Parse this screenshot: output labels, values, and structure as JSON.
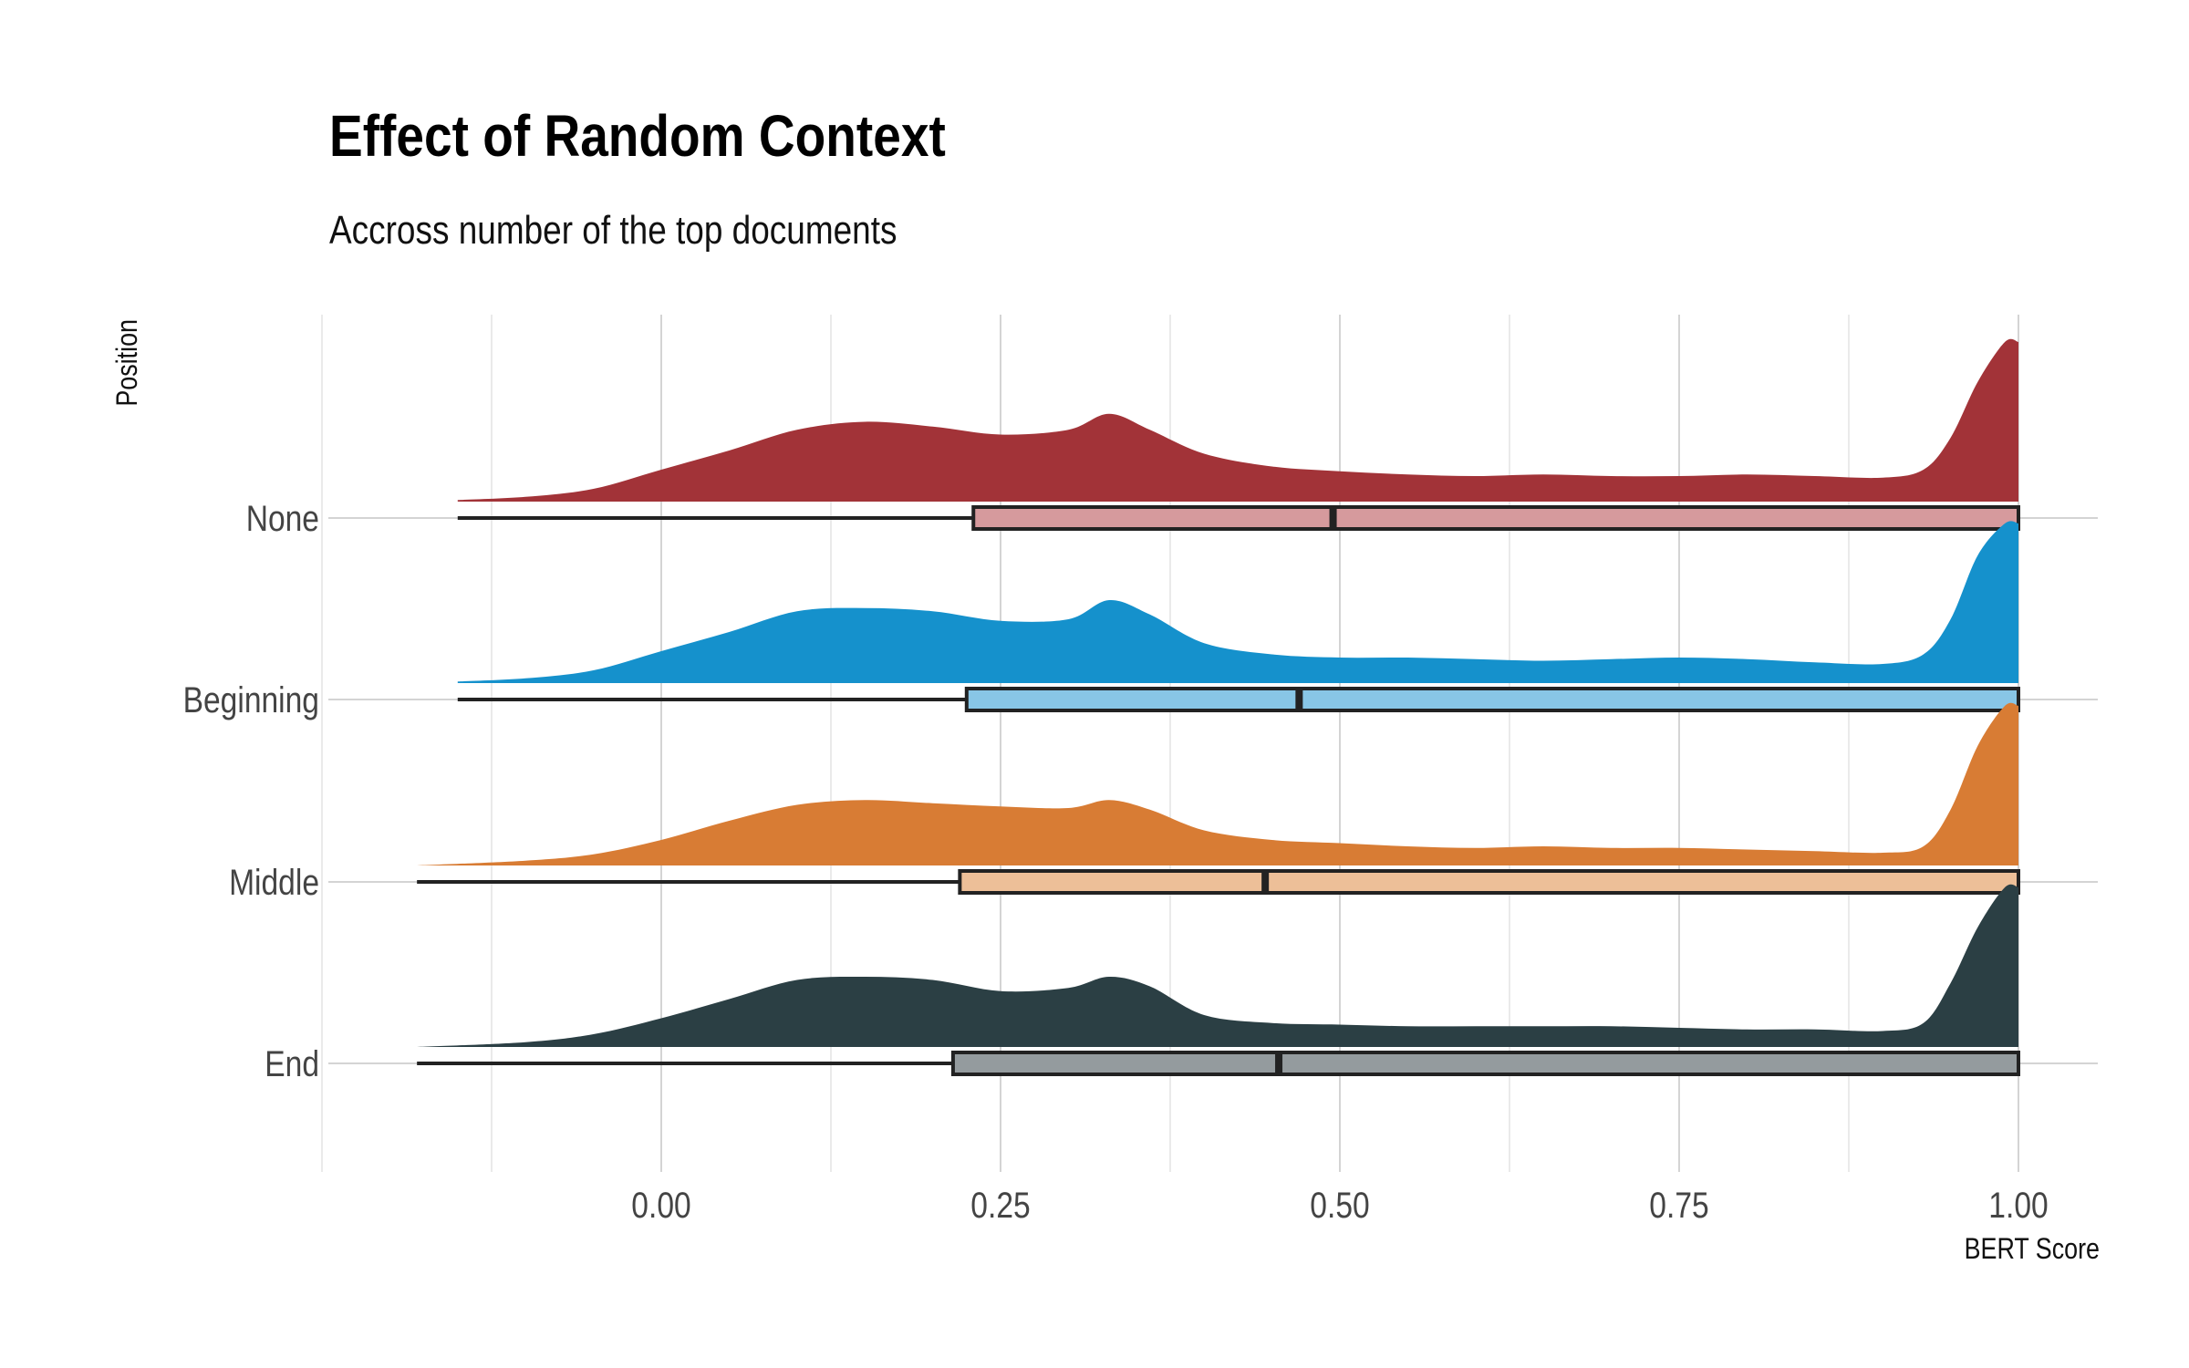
{
  "chart_data": {
    "type": "raincloud",
    "title": "Effect of Random Context",
    "subtitle": "Accross number of the top documents",
    "xlabel": "BERT Score",
    "ylabel": "Position",
    "xlim": [
      -0.25,
      1.06
    ],
    "x_ticks": [
      0.0,
      0.25,
      0.5,
      0.75,
      1.0
    ],
    "x_tick_labels": [
      "0.00",
      "0.25",
      "0.50",
      "0.75",
      "1.00"
    ],
    "grid": true,
    "categories": [
      "None",
      "Beginning",
      "Middle",
      "End"
    ],
    "series": [
      {
        "name": "None",
        "color": "#A23338",
        "box_fill": "#D69A9D",
        "box": {
          "whisker_low": -0.15,
          "q1": 0.23,
          "median": 0.495,
          "q3": 1.0,
          "whisker_high": 1.0
        },
        "density_x": [
          -0.15,
          -0.1,
          -0.05,
          0.0,
          0.05,
          0.1,
          0.15,
          0.2,
          0.25,
          0.3,
          0.33,
          0.36,
          0.4,
          0.45,
          0.5,
          0.55,
          0.6,
          0.65,
          0.7,
          0.75,
          0.8,
          0.85,
          0.9,
          0.93,
          0.95,
          0.97,
          0.99,
          1.0
        ],
        "density_y": [
          0.01,
          0.03,
          0.08,
          0.2,
          0.32,
          0.45,
          0.5,
          0.47,
          0.42,
          0.45,
          0.55,
          0.45,
          0.3,
          0.22,
          0.19,
          0.17,
          0.16,
          0.17,
          0.16,
          0.16,
          0.17,
          0.16,
          0.15,
          0.2,
          0.4,
          0.75,
          1.0,
          1.0
        ]
      },
      {
        "name": "Beginning",
        "color": "#1591CC",
        "box_fill": "#88C6E6",
        "box": {
          "whisker_low": -0.15,
          "q1": 0.225,
          "median": 0.47,
          "q3": 1.0,
          "whisker_high": 1.0
        },
        "density_x": [
          -0.15,
          -0.1,
          -0.05,
          0.0,
          0.05,
          0.1,
          0.15,
          0.2,
          0.25,
          0.3,
          0.33,
          0.36,
          0.4,
          0.45,
          0.5,
          0.55,
          0.6,
          0.65,
          0.7,
          0.75,
          0.8,
          0.85,
          0.9,
          0.93,
          0.95,
          0.97,
          0.99,
          1.0
        ],
        "density_y": [
          0.01,
          0.03,
          0.08,
          0.2,
          0.32,
          0.45,
          0.47,
          0.45,
          0.39,
          0.4,
          0.52,
          0.43,
          0.25,
          0.18,
          0.16,
          0.16,
          0.15,
          0.14,
          0.15,
          0.16,
          0.15,
          0.13,
          0.12,
          0.18,
          0.4,
          0.8,
          1.0,
          1.0
        ]
      },
      {
        "name": "Middle",
        "color": "#D87C34",
        "box_fill": "#EDBF98",
        "box": {
          "whisker_low": -0.18,
          "q1": 0.22,
          "median": 0.445,
          "q3": 1.0,
          "whisker_high": 1.0
        },
        "density_x": [
          -0.18,
          -0.1,
          -0.05,
          0.0,
          0.05,
          0.1,
          0.15,
          0.2,
          0.25,
          0.3,
          0.33,
          0.36,
          0.4,
          0.45,
          0.5,
          0.55,
          0.6,
          0.65,
          0.7,
          0.75,
          0.8,
          0.85,
          0.9,
          0.93,
          0.95,
          0.97,
          0.99,
          1.0
        ],
        "density_y": [
          0.0,
          0.03,
          0.07,
          0.16,
          0.28,
          0.38,
          0.41,
          0.39,
          0.37,
          0.36,
          0.41,
          0.35,
          0.22,
          0.16,
          0.14,
          0.12,
          0.11,
          0.12,
          0.11,
          0.11,
          0.1,
          0.09,
          0.08,
          0.12,
          0.35,
          0.75,
          1.0,
          1.0
        ]
      },
      {
        "name": "End",
        "color": "#2B3F44",
        "box_fill": "#949B9E",
        "box": {
          "whisker_low": -0.18,
          "q1": 0.215,
          "median": 0.455,
          "q3": 1.0,
          "whisker_high": 1.0
        },
        "density_x": [
          -0.18,
          -0.1,
          -0.05,
          0.0,
          0.05,
          0.1,
          0.15,
          0.2,
          0.25,
          0.3,
          0.33,
          0.36,
          0.4,
          0.45,
          0.5,
          0.55,
          0.6,
          0.65,
          0.7,
          0.75,
          0.8,
          0.85,
          0.9,
          0.93,
          0.95,
          0.97,
          0.99,
          1.0
        ],
        "density_y": [
          0.0,
          0.03,
          0.08,
          0.18,
          0.3,
          0.42,
          0.44,
          0.42,
          0.35,
          0.37,
          0.44,
          0.38,
          0.2,
          0.15,
          0.14,
          0.13,
          0.13,
          0.13,
          0.13,
          0.12,
          0.11,
          0.11,
          0.1,
          0.15,
          0.4,
          0.75,
          1.0,
          1.0
        ]
      }
    ]
  }
}
